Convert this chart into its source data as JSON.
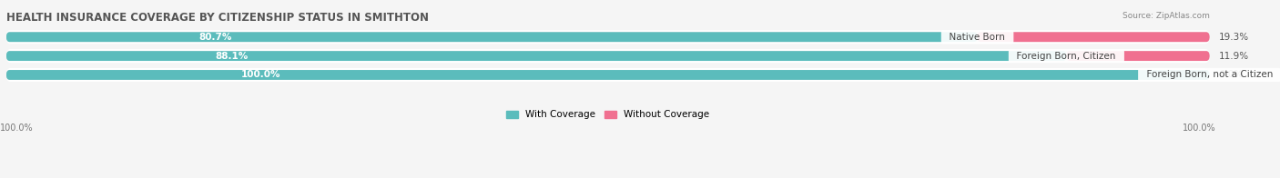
{
  "title": "HEALTH INSURANCE COVERAGE BY CITIZENSHIP STATUS IN SMITHTON",
  "source": "Source: ZipAtlas.com",
  "categories": [
    "Native Born",
    "Foreign Born, Citizen",
    "Foreign Born, not a Citizen"
  ],
  "with_coverage": [
    80.7,
    88.1,
    100.0
  ],
  "without_coverage": [
    19.3,
    11.9,
    0.0
  ],
  "color_with": "#5BBCBC",
  "color_without": "#F07090",
  "color_without_light": "#F8B0C0",
  "bg_color": "#f5f5f5",
  "bar_bg": "#e8e8e8",
  "row_bg": "#ffffff",
  "title_fontsize": 8.5,
  "label_fontsize": 7.5,
  "tick_fontsize": 7.0,
  "legend_fontsize": 7.5,
  "x_left_label": "100.0%",
  "x_right_label": "100.0%"
}
